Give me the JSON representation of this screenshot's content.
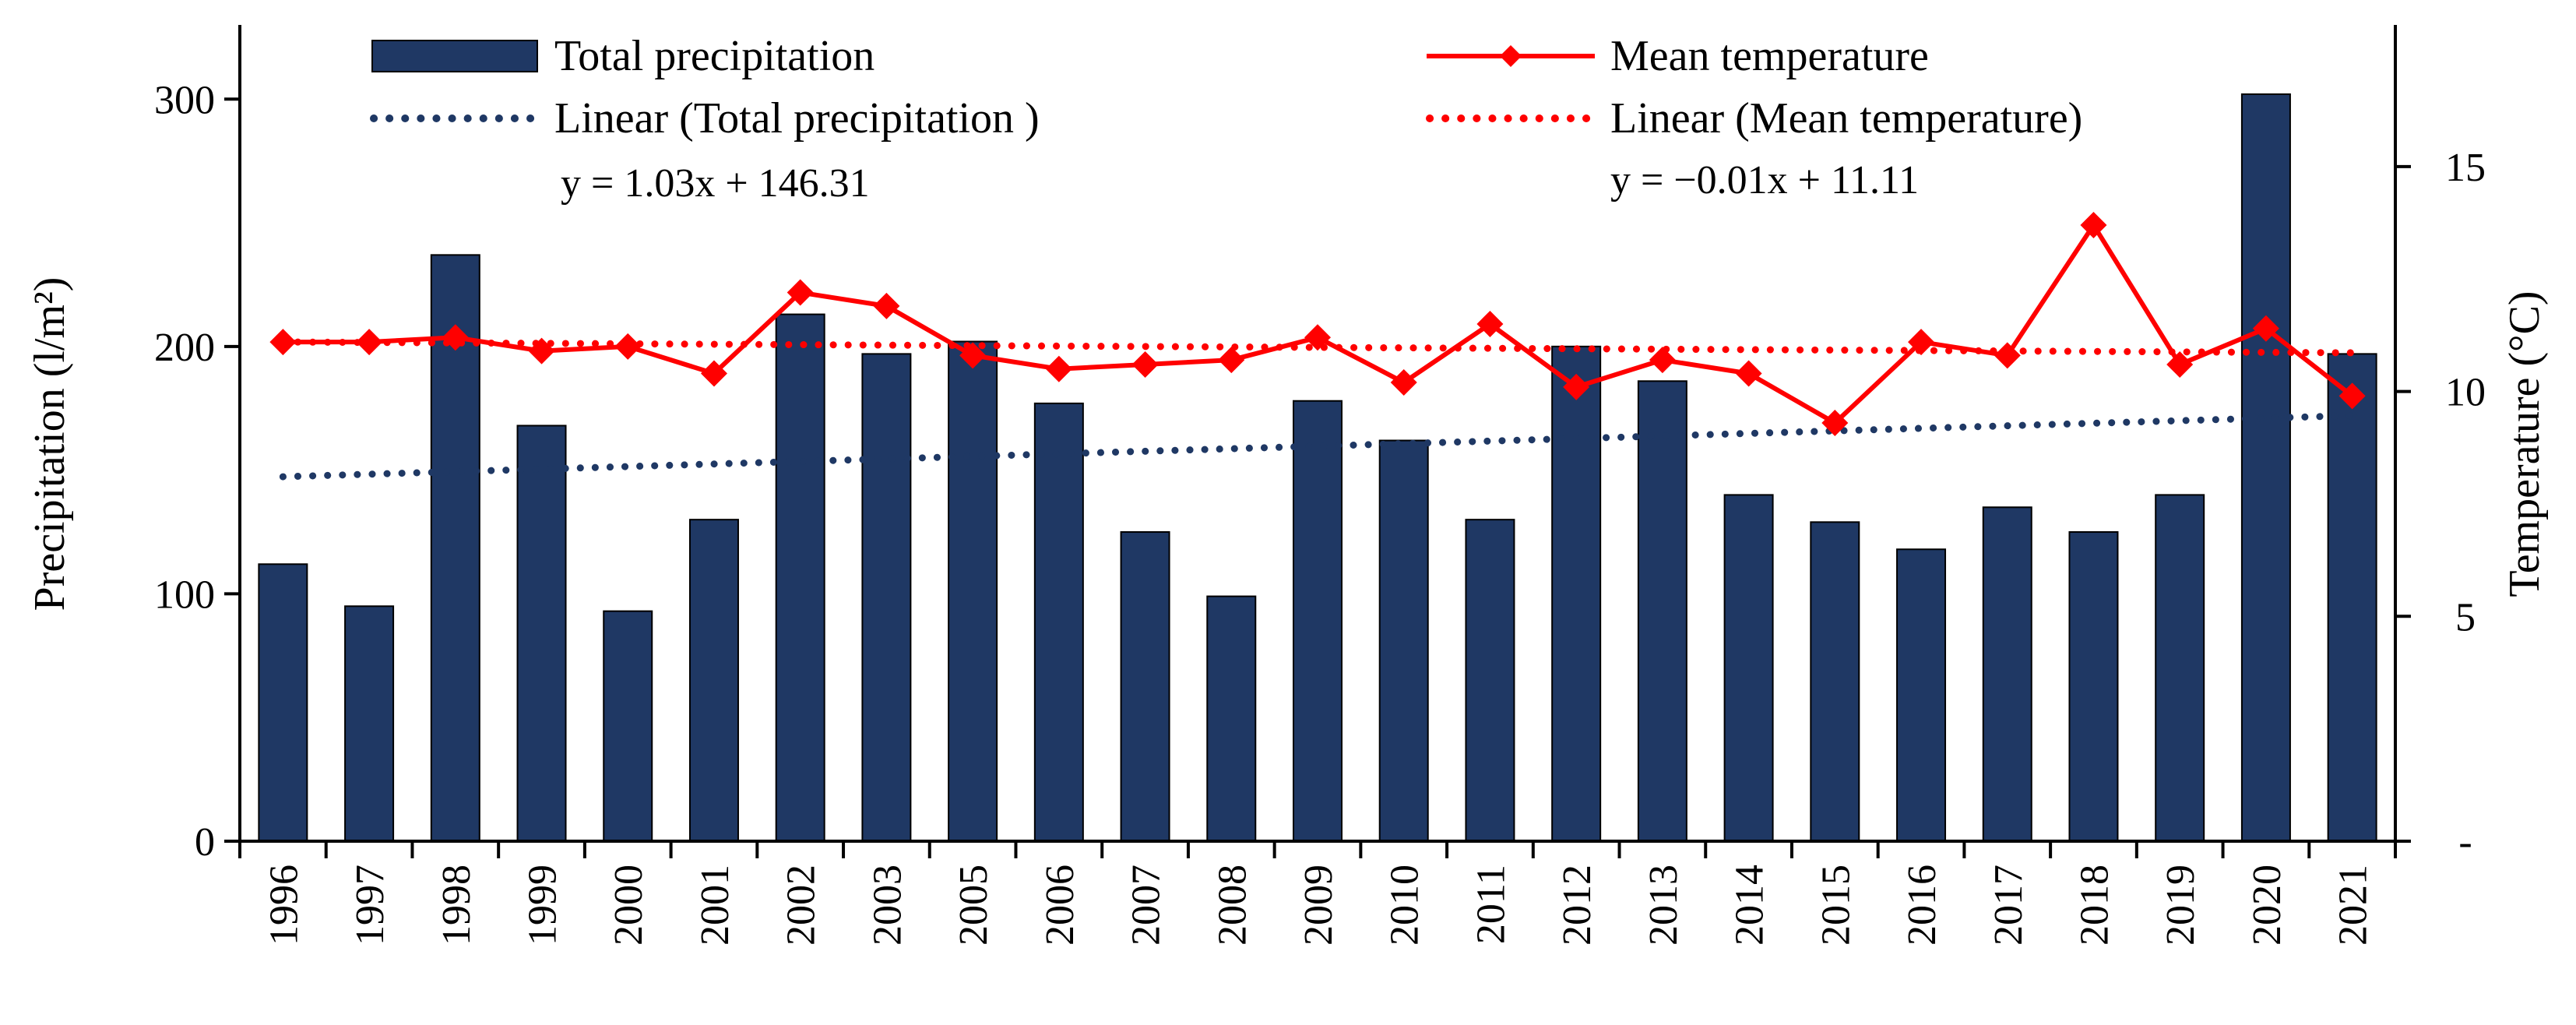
{
  "chart_data": {
    "type": "bar",
    "categories": [
      "1996",
      "1997",
      "1998",
      "1999",
      "2000",
      "2001",
      "2002",
      "2003",
      "2005",
      "2006",
      "2007",
      "2008",
      "2009",
      "2010",
      "2011",
      "2012",
      "2013",
      "2014",
      "2015",
      "2016",
      "2017",
      "2018",
      "2019",
      "2020",
      "2021"
    ],
    "series": [
      {
        "name": "Total precipitation",
        "type": "bar",
        "axis": "left",
        "color": "#1f3864",
        "values": [
          112,
          95,
          237,
          168,
          93,
          130,
          213,
          197,
          202,
          177,
          125,
          99,
          178,
          162,
          130,
          200,
          186,
          140,
          129,
          118,
          135,
          125,
          140,
          302,
          197
        ]
      },
      {
        "name": "Mean temperature",
        "type": "line",
        "axis": "right",
        "color": "#ff0000",
        "values": [
          11.1,
          11.1,
          11.2,
          10.9,
          11.0,
          10.4,
          12.2,
          11.9,
          10.8,
          10.5,
          10.6,
          10.7,
          11.2,
          10.2,
          11.5,
          10.1,
          10.7,
          10.4,
          9.3,
          11.1,
          10.8,
          13.7,
          10.6,
          11.4,
          9.9
        ]
      }
    ],
    "trendlines": [
      {
        "name": "Linear (Total precipitation )",
        "axis": "left",
        "color": "#1f3864",
        "slope": 1.03,
        "intercept": 146.31,
        "equation": "y = 1.03x + 146.31"
      },
      {
        "name": "Linear (Mean temperature)",
        "axis": "right",
        "color": "#ff0000",
        "slope": -0.01,
        "intercept": 11.11,
        "equation": "y = −0.01x + 11.11"
      }
    ],
    "ylabel": "Precipitation (l/m²)",
    "y2label": "Temperature (°C)",
    "ylim": [
      0,
      330
    ],
    "y2lim": [
      0,
      18.15
    ],
    "yticks": [
      0,
      100,
      200,
      300
    ],
    "y2ticks": [
      {
        "value": 0,
        "label": "-"
      },
      {
        "value": 5,
        "label": "5"
      },
      {
        "value": 10,
        "label": "10"
      },
      {
        "value": 15,
        "label": "15"
      }
    ],
    "grid": false,
    "legend_position": "top"
  }
}
